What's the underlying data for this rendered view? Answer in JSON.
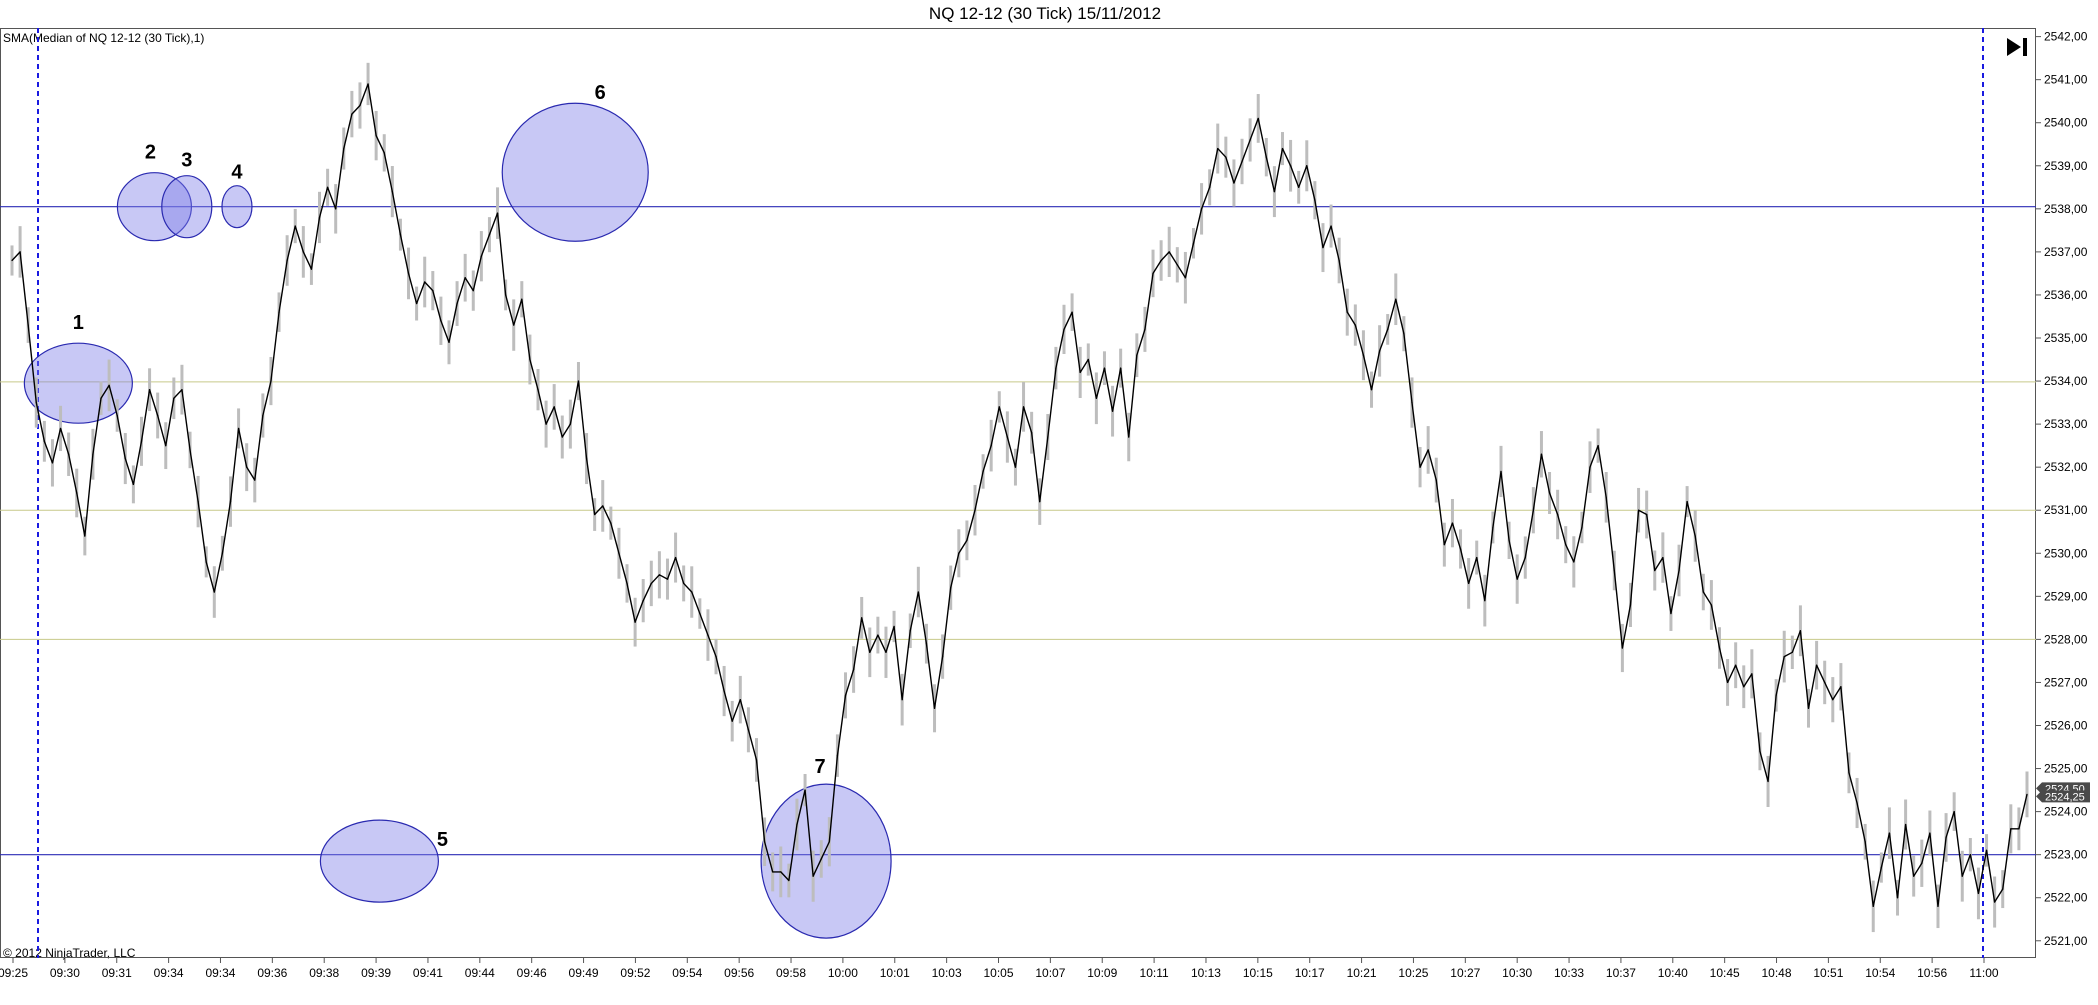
{
  "chart_data": {
    "type": "line",
    "title": "NQ 12-12 (30 Tick)  15/11/2012",
    "indicator_label": "SMA(Median of NQ 12-12 (30 Tick),1)",
    "copyright": "© 2012 NinjaTrader, LLC",
    "ylim": [
      2520.6,
      2542.2
    ],
    "y_ticks": [
      "2521,00",
      "2522,00",
      "2523,00",
      "2524,00",
      "2525,00",
      "2526,00",
      "2527,00",
      "2528,00",
      "2529,00",
      "2530,00",
      "2531,00",
      "2532,00",
      "2533,00",
      "2534,00",
      "2535,00",
      "2536,00",
      "2537,00",
      "2538,00",
      "2539,00",
      "2540,00",
      "2541,00",
      "2542,00"
    ],
    "x_ticks": [
      "09:25",
      "09:30",
      "09:31",
      "09:34",
      "09:34",
      "09:36",
      "09:38",
      "09:39",
      "09:41",
      "09:44",
      "09:46",
      "09:49",
      "09:52",
      "09:54",
      "09:56",
      "09:58",
      "10:00",
      "10:01",
      "10:03",
      "10:05",
      "10:07",
      "10:09",
      "10:11",
      "10:13",
      "10:15",
      "10:17",
      "10:21",
      "10:25",
      "10:27",
      "10:30",
      "10:33",
      "10:37",
      "10:40",
      "10:45",
      "10:48",
      "10:51",
      "10:54",
      "10:56",
      "11:00"
    ],
    "series": [
      {
        "values": [
          2536.8,
          2537.0,
          2535.3,
          2533.5,
          2532.6,
          2532.1,
          2532.9,
          2532.3,
          2531.4,
          2530.4,
          2532.3,
          2533.6,
          2533.9,
          2533.2,
          2532.2,
          2531.6,
          2532.6,
          2533.8,
          2533.2,
          2532.5,
          2533.6,
          2533.8,
          2532.4,
          2531.2,
          2529.8,
          2529.1,
          2530.0,
          2531.2,
          2532.9,
          2532.0,
          2531.7,
          2533.2,
          2534.0,
          2535.6,
          2536.8,
          2537.6,
          2537.0,
          2536.6,
          2537.8,
          2538.5,
          2538.0,
          2539.4,
          2540.2,
          2540.4,
          2540.9,
          2539.7,
          2539.3,
          2538.4,
          2537.4,
          2536.5,
          2535.8,
          2536.3,
          2536.1,
          2535.4,
          2534.9,
          2535.8,
          2536.4,
          2536.1,
          2536.9,
          2537.4,
          2537.9,
          2536.0,
          2535.3,
          2535.9,
          2534.5,
          2533.8,
          2533.0,
          2533.4,
          2532.7,
          2533.0,
          2534.0,
          2532.2,
          2530.9,
          2531.1,
          2530.7,
          2530.0,
          2529.3,
          2528.4,
          2528.9,
          2529.3,
          2529.5,
          2529.4,
          2529.9,
          2529.3,
          2529.1,
          2528.6,
          2528.1,
          2527.6,
          2526.8,
          2526.1,
          2526.6,
          2525.9,
          2525.2,
          2523.3,
          2522.6,
          2522.6,
          2522.4,
          2523.7,
          2524.5,
          2522.5,
          2522.9,
          2523.3,
          2525.3,
          2526.7,
          2527.3,
          2528.5,
          2527.7,
          2528.1,
          2527.7,
          2528.3,
          2526.6,
          2528.2,
          2529.1,
          2527.9,
          2526.4,
          2527.6,
          2529.2,
          2530.0,
          2530.3,
          2531.0,
          2531.9,
          2532.5,
          2533.4,
          2532.7,
          2532.0,
          2533.4,
          2532.8,
          2531.2,
          2532.7,
          2534.3,
          2535.2,
          2535.6,
          2534.2,
          2534.5,
          2533.6,
          2534.3,
          2533.3,
          2534.3,
          2532.7,
          2534.6,
          2535.2,
          2536.5,
          2536.8,
          2537.0,
          2536.7,
          2536.4,
          2537.2,
          2538.0,
          2538.5,
          2539.4,
          2539.2,
          2538.6,
          2539.1,
          2539.6,
          2540.1,
          2539.2,
          2538.4,
          2539.4,
          2539.0,
          2538.5,
          2539.0,
          2538.2,
          2537.1,
          2537.6,
          2536.8,
          2535.6,
          2535.3,
          2534.6,
          2533.8,
          2534.7,
          2535.2,
          2535.9,
          2535.1,
          2533.5,
          2532.0,
          2532.4,
          2531.7,
          2530.2,
          2530.7,
          2530.1,
          2529.3,
          2529.9,
          2528.9,
          2530.6,
          2531.9,
          2530.3,
          2529.4,
          2529.9,
          2531.0,
          2532.3,
          2531.4,
          2530.9,
          2530.2,
          2529.8,
          2530.6,
          2532.0,
          2532.5,
          2531.3,
          2529.6,
          2527.8,
          2528.8,
          2531.0,
          2530.9,
          2529.6,
          2529.9,
          2528.6,
          2529.6,
          2531.2,
          2530.4,
          2529.1,
          2528.8,
          2527.8,
          2527.0,
          2527.4,
          2526.9,
          2527.2,
          2525.4,
          2524.7,
          2526.7,
          2527.6,
          2527.7,
          2528.2,
          2526.4,
          2527.4,
          2527.0,
          2526.6,
          2526.9,
          2524.9,
          2524.2,
          2523.3,
          2521.8,
          2522.7,
          2523.5,
          2522.0,
          2523.7,
          2522.5,
          2522.8,
          2523.5,
          2521.8,
          2523.4,
          2524.0,
          2522.5,
          2523.0,
          2522.1,
          2523.1,
          2521.9,
          2522.2,
          2523.6,
          2523.6,
          2524.4
        ]
      }
    ],
    "blue_h_lines": [
      2538.05,
      2523.0
    ],
    "olive_h_lines": [
      2533.98,
      2531.0,
      2528.0
    ],
    "session_lines": [
      "09:30",
      "11:00"
    ],
    "annotations": [
      {
        "label": "1",
        "x": 8.2,
        "y": 2533.95
      },
      {
        "label": "2",
        "x": 17.6,
        "y": 2538.05
      },
      {
        "label": "3",
        "x": 21.6,
        "y": 2538.05
      },
      {
        "label": "4",
        "x": 27.8,
        "y": 2538.05
      },
      {
        "label": "5",
        "x": 45.4,
        "y": 2522.85
      },
      {
        "label": "6",
        "x": 69.6,
        "y": 2538.85
      },
      {
        "label": "7",
        "x": 100.6,
        "y": 2522.85
      }
    ],
    "last_price": "2524,25",
    "prev_price_tag": "2524,50",
    "grid": false,
    "colors": {
      "line": "#000000",
      "range": "#bdbdbd",
      "blue_line": "#2b2bb6",
      "olive_line": "#c7c98a",
      "circle_fill": "#7b7be6",
      "circle_stroke": "#2a2ab0",
      "session_line": "#1a1ae0",
      "price_tag": "#4a4a4a"
    }
  }
}
